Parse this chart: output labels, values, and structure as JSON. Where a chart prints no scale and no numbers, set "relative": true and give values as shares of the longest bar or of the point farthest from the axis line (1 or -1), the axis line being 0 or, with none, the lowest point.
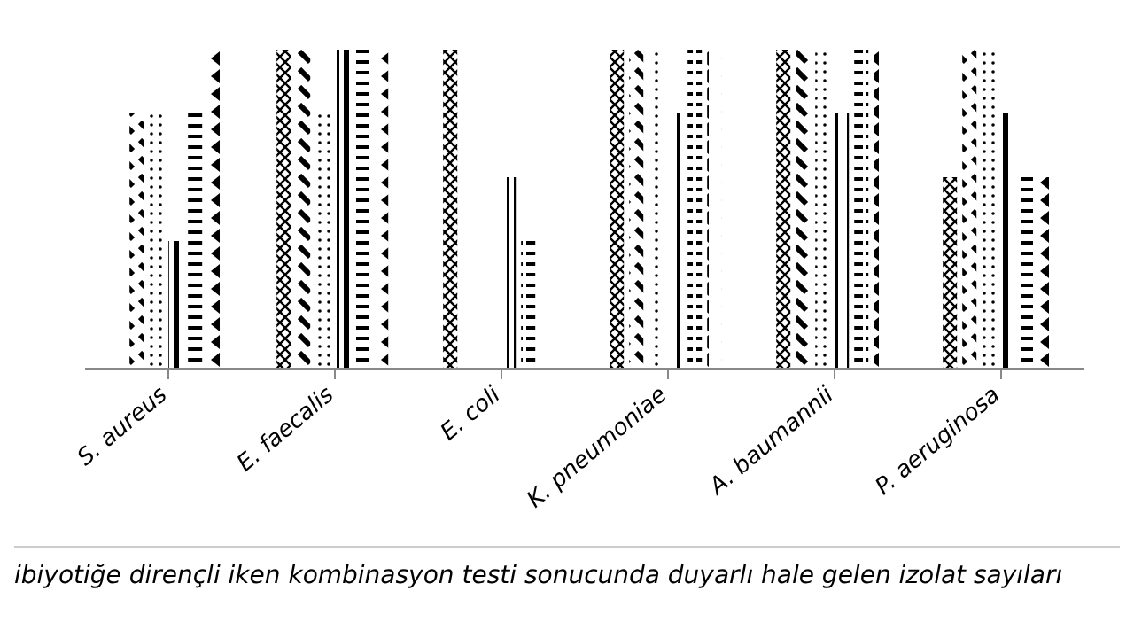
{
  "chart_data": {
    "type": "bar",
    "relative": true,
    "categories": [
      "S. aureus",
      "E. faecalis",
      "E. coli",
      "K. pneumoniae",
      "A. baumannii",
      "P. aeruginosa"
    ],
    "series": [
      {
        "color": "#000000",
        "values": [
          null,
          1,
          1,
          1,
          1,
          0.6
        ]
      },
      {
        "color": "#000000",
        "values": [
          0.8,
          1,
          0,
          1,
          1,
          1
        ]
      },
      {
        "color": "#000000",
        "values": [
          0.8,
          0.8,
          0,
          1,
          1,
          1
        ]
      },
      {
        "color": "#000000",
        "values": [
          0.4,
          1,
          0.6,
          0.8,
          0.8,
          0.8
        ]
      },
      {
        "color": "#000000",
        "values": [
          0.8,
          1,
          0.4,
          1,
          1,
          0.6
        ]
      },
      {
        "color": "#000000",
        "values": [
          1,
          1,
          0,
          1,
          1,
          0.6
        ]
      }
    ],
    "annotations": [
      "ibiyotiğe dirençli iken kombinasyon testi sonucunda duyarlı hale gelen izolat sayıları"
    ],
    "grid": false,
    "legend": false
  }
}
